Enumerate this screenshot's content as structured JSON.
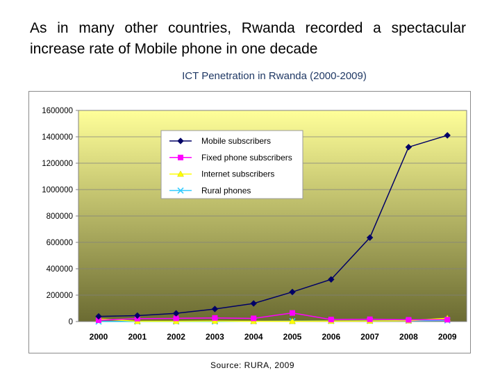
{
  "page": {
    "headline": "As in many other countries, Rwanda recorded a spectacular increase rate of Mobile phone in one decade",
    "source": "Source: RURA, 2009"
  },
  "colors": {
    "mobile": "#000066",
    "fixed": "#ff00ff",
    "internet": "#ffff00",
    "rural": "#33ccff",
    "plot_top": "#ffff99",
    "plot_bottom": "#6b6b32"
  },
  "chart_data": {
    "type": "line",
    "title": "ICT Penetration in Rwanda (2000-2009)",
    "xlabel": "",
    "ylabel": "",
    "categories": [
      "2000",
      "2001",
      "2002",
      "2003",
      "2004",
      "2005",
      "2006",
      "2007",
      "2008",
      "2009"
    ],
    "ylim": [
      0,
      1600000
    ],
    "yticks": [
      0,
      200000,
      400000,
      600000,
      800000,
      1000000,
      1200000,
      1400000,
      1600000
    ],
    "ytick_labels": [
      "0",
      "200000",
      "400000",
      "600000",
      "800000",
      "1000000",
      "1200000",
      "1400000",
      "1600000"
    ],
    "grid": true,
    "legend_position": "top-left",
    "series": [
      {
        "name": "Mobile subscribers",
        "marker": "diamond",
        "color_key": "mobile",
        "values": [
          39000,
          45000,
          62000,
          95000,
          137000,
          224000,
          319000,
          636000,
          1322000,
          1411000
        ]
      },
      {
        "name": "Fixed phone subscribers",
        "marker": "square",
        "color_key": "fixed",
        "values": [
          10000,
          22000,
          24000,
          27000,
          24000,
          65000,
          15000,
          17000,
          13000,
          14000
        ]
      },
      {
        "name": "Internet subscribers",
        "marker": "triangle",
        "color_key": "internet",
        "values": [
          20000,
          2000,
          2000,
          3000,
          2000,
          2000,
          3000,
          4000,
          6000,
          25000
        ]
      },
      {
        "name": "Rural phones",
        "marker": "x",
        "color_key": "rural",
        "values": [
          0,
          0,
          0,
          0,
          2000,
          3000,
          4000,
          5000,
          6000,
          8000
        ]
      }
    ]
  }
}
